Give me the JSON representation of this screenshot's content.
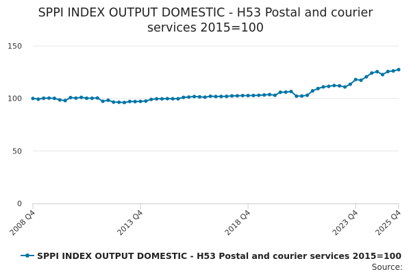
{
  "title_line1": "SPPI INDEX OUTPUT DOMESTIC - H53 Postal and courier",
  "title_line2": "services 2015=100",
  "legend_label": "SPPI INDEX OUTPUT DOMESTIC - H53 Postal and courier services 2015=100",
  "source_label": "Source:",
  "colors": {
    "series": "#0075a6",
    "grid": "#e6e6e6",
    "axis": "#cccccc",
    "text": "#333333"
  },
  "chart_data": {
    "type": "line",
    "title": "SPPI INDEX OUTPUT DOMESTIC - H53 Postal and courier services 2015=100",
    "xlabel": "",
    "ylabel": "",
    "ylim": [
      0,
      150
    ],
    "yticks": [
      0,
      50,
      100,
      150
    ],
    "grid": true,
    "legend": "bottom",
    "x_tick_labels": [
      "2008 Q4",
      "2013 Q4",
      "2018 Q4",
      "2023 Q4",
      "2025 Q4"
    ],
    "x": [
      "2008 Q4",
      "2009 Q1",
      "2009 Q2",
      "2009 Q3",
      "2009 Q4",
      "2010 Q1",
      "2010 Q2",
      "2010 Q3",
      "2010 Q4",
      "2011 Q1",
      "2011 Q2",
      "2011 Q3",
      "2011 Q4",
      "2012 Q1",
      "2012 Q2",
      "2012 Q3",
      "2012 Q4",
      "2013 Q1",
      "2013 Q2",
      "2013 Q3",
      "2013 Q4",
      "2014 Q1",
      "2014 Q2",
      "2014 Q3",
      "2014 Q4",
      "2015 Q1",
      "2015 Q2",
      "2015 Q3",
      "2015 Q4",
      "2016 Q1",
      "2016 Q2",
      "2016 Q3",
      "2016 Q4",
      "2017 Q1",
      "2017 Q2",
      "2017 Q3",
      "2017 Q4",
      "2018 Q1",
      "2018 Q2",
      "2018 Q3",
      "2018 Q4",
      "2019 Q1",
      "2019 Q2",
      "2019 Q3",
      "2019 Q4",
      "2020 Q1",
      "2020 Q2",
      "2020 Q3",
      "2020 Q4",
      "2021 Q1",
      "2021 Q2",
      "2021 Q3",
      "2021 Q4",
      "2022 Q1",
      "2022 Q2",
      "2022 Q3",
      "2022 Q4",
      "2023 Q1",
      "2023 Q2",
      "2023 Q3",
      "2023 Q4",
      "2024 Q1",
      "2024 Q2",
      "2024 Q3",
      "2024 Q4",
      "2025 Q1",
      "2025 Q2",
      "2025 Q3",
      "2025 Q4"
    ],
    "series": [
      {
        "name": "SPPI INDEX OUTPUT DOMESTIC - H53 Postal and courier services 2015=100",
        "values": [
          100.0,
          99.3,
          100.2,
          100.3,
          100.1,
          98.6,
          98.0,
          100.8,
          100.3,
          101.0,
          100.2,
          100.2,
          100.4,
          97.3,
          98.3,
          96.5,
          96.4,
          96.1,
          97.1,
          97.0,
          97.2,
          97.5,
          99.1,
          99.6,
          99.6,
          99.8,
          99.7,
          99.7,
          101.0,
          101.3,
          101.8,
          101.5,
          101.2,
          102.1,
          101.8,
          101.9,
          102.0,
          102.4,
          102.5,
          102.7,
          102.7,
          102.8,
          103.0,
          103.3,
          103.7,
          103.0,
          105.9,
          106.0,
          106.6,
          102.2,
          102.3,
          103.0,
          107.2,
          109.4,
          111.0,
          111.5,
          112.3,
          112.0,
          110.9,
          113.5,
          118.0,
          117.3,
          120.6,
          124.2,
          125.5,
          122.7,
          125.6,
          126.2,
          127.4
        ]
      }
    ]
  }
}
